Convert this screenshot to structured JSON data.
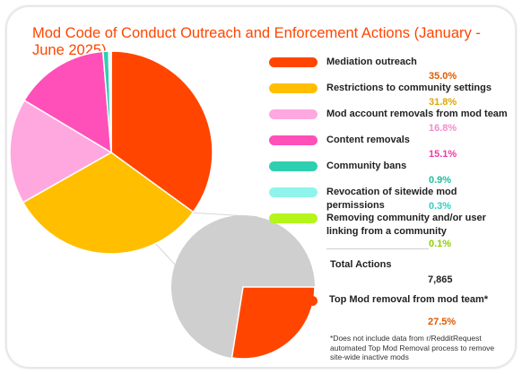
{
  "chart_data": {
    "type": "pie",
    "title": "Mod Code of Conduct Outreach and Enforcement Actions (January - June 2025)",
    "slices": [
      {
        "label": "Mediation outreach",
        "value": 35.0,
        "value_label": "35.0%",
        "color": "#ff4500",
        "value_color": "#e05a00"
      },
      {
        "label": "Restrictions to community settings",
        "value": 31.8,
        "value_label": "31.8%",
        "color": "#ffbf00",
        "value_color": "#e0a800"
      },
      {
        "label": "Mod account removals from mod team",
        "value": 16.8,
        "value_label": "16.8%",
        "color": "#ffa8df",
        "value_color": "#f08ccd"
      },
      {
        "label": "Content removals",
        "value": 15.1,
        "value_label": "15.1%",
        "color": "#ff4fb8",
        "value_color": "#ee3aa6"
      },
      {
        "label": "Community bans",
        "value": 0.9,
        "value_label": "0.9%",
        "color": "#2ecfb0",
        "value_color": "#1fbf9f"
      },
      {
        "label": "Revocation of sitewide mod permissions",
        "value": 0.3,
        "value_label": "0.3%",
        "color": "#8ff5ea",
        "value_color": "#2fcfc0"
      },
      {
        "label": "Removing community and/or user linking from a community",
        "value": 0.1,
        "value_label": "0.1%",
        "color": "#b5f51a",
        "value_color": "#8fcf00"
      }
    ],
    "total": {
      "label": "Total Actions",
      "value": "7,865"
    },
    "sub_pie": {
      "parent": "Mod account removals from mod team",
      "highlight": {
        "label": "Top Mod removal from mod team*",
        "value": 27.5,
        "value_label": "27.5%",
        "color": "#ff4500"
      },
      "rest_color": "#cfcfcf"
    },
    "footnote": "*Does not include data from r/RedditRequest automated Top Mod Removal process to remove site-wide inactive mods"
  }
}
